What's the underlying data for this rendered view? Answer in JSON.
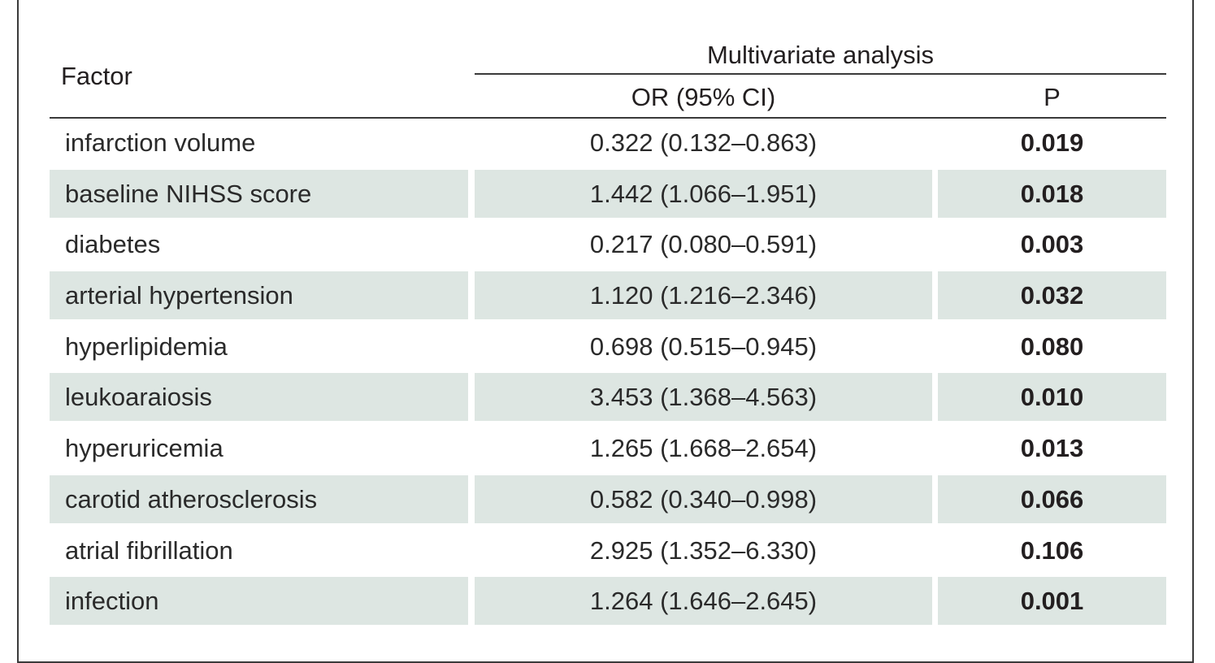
{
  "table": {
    "header": {
      "factor": "Factor",
      "group": "Multivariate analysis",
      "or": "OR (95% CI)",
      "p": "P"
    },
    "colors": {
      "shade": "#dde6e2",
      "rule": "#3a3a3a"
    },
    "rows": [
      {
        "factor": "infarction volume",
        "or": "0.322 (0.132–0.863)",
        "p": "0.019",
        "shaded": false
      },
      {
        "factor": "baseline NIHSS score",
        "or": "1.442 (1.066–1.951)",
        "p": "0.018",
        "shaded": true
      },
      {
        "factor": "diabetes",
        "or": "0.217 (0.080–0.591)",
        "p": "0.003",
        "shaded": false
      },
      {
        "factor": "arterial hypertension",
        "or": "1.120 (1.216–2.346)",
        "p": "0.032",
        "shaded": true
      },
      {
        "factor": "hyperlipidemia",
        "or": "0.698 (0.515–0.945)",
        "p": "0.080",
        "shaded": false
      },
      {
        "factor": "leukoaraiosis",
        "or": "3.453 (1.368–4.563)",
        "p": "0.010",
        "shaded": true
      },
      {
        "factor": "hyperuricemia",
        "or": "1.265 (1.668–2.654)",
        "p": "0.013",
        "shaded": false
      },
      {
        "factor": "carotid atherosclerosis",
        "or": "0.582 (0.340–0.998)",
        "p": "0.066",
        "shaded": true
      },
      {
        "factor": "atrial fibrillation",
        "or": "2.925 (1.352–6.330)",
        "p": "0.106",
        "shaded": false
      },
      {
        "factor": "infection",
        "or": "1.264 (1.646–2.645)",
        "p": "0.001",
        "shaded": true
      }
    ]
  }
}
